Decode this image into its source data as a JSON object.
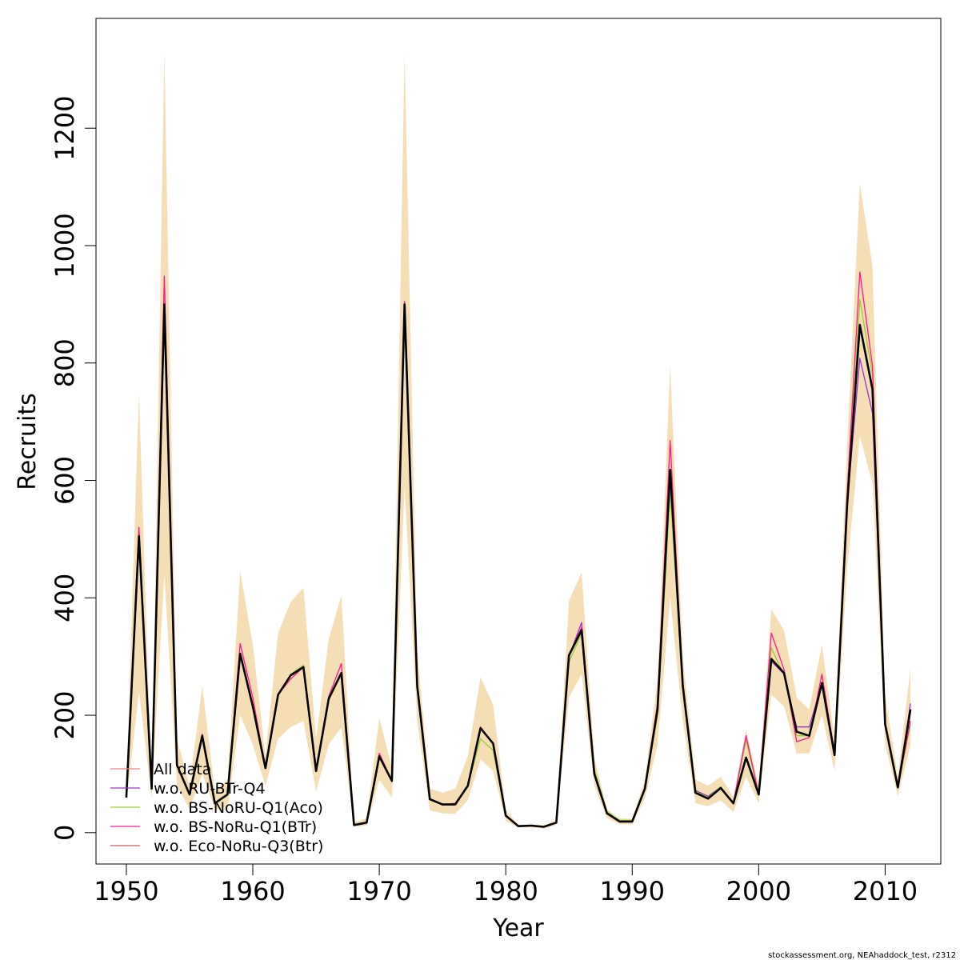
{
  "chart_data": {
    "type": "line",
    "xlabel": "Year",
    "ylabel": "Recruits",
    "xlim": [
      1947.6,
      2014.4
    ],
    "ylim": [
      -53.4,
      1387
    ],
    "xticks": [
      1950,
      1960,
      1970,
      1980,
      1990,
      2000,
      2010
    ],
    "yticks": [
      0,
      200,
      400,
      600,
      800,
      1000,
      1200
    ],
    "legend_position": "bottom-left",
    "band_color": "#F5DEB3",
    "x": [
      1950,
      1951,
      1952,
      1953,
      1954,
      1955,
      1956,
      1957,
      1958,
      1959,
      1960,
      1961,
      1962,
      1963,
      1964,
      1965,
      1966,
      1967,
      1968,
      1969,
      1970,
      1971,
      1972,
      1973,
      1974,
      1975,
      1976,
      1977,
      1978,
      1979,
      1980,
      1981,
      1982,
      1983,
      1984,
      1985,
      1986,
      1987,
      1988,
      1989,
      1990,
      1991,
      1992,
      1993,
      1994,
      1995,
      1996,
      1997,
      1998,
      1999,
      2000,
      2001,
      2002,
      2003,
      2004,
      2005,
      2006,
      2007,
      2008,
      2009,
      2010,
      2011,
      2012
    ],
    "band_upper": [
      80,
      750,
      70,
      1330,
      160,
      80,
      250,
      70,
      90,
      445,
      320,
      130,
      340,
      393,
      417,
      160,
      330,
      404,
      17,
      25,
      195,
      110,
      1330,
      310,
      75,
      68,
      75,
      130,
      265,
      218,
      38,
      13,
      14,
      12,
      22,
      395,
      443,
      127,
      40,
      24,
      24,
      90,
      260,
      795,
      300,
      90,
      80,
      95,
      60,
      175,
      80,
      380,
      345,
      230,
      210,
      320,
      160,
      660,
      1105,
      965,
      235,
      95,
      280
    ],
    "band_lower": [
      50,
      240,
      60,
      440,
      80,
      40,
      100,
      40,
      40,
      200,
      150,
      80,
      160,
      180,
      190,
      70,
      150,
      180,
      10,
      12,
      90,
      60,
      590,
      190,
      38,
      33,
      32,
      55,
      125,
      105,
      20,
      9,
      9,
      7,
      13,
      230,
      270,
      80,
      25,
      14,
      14,
      58,
      150,
      400,
      190,
      50,
      45,
      55,
      35,
      95,
      50,
      235,
      215,
      135,
      135,
      200,
      105,
      450,
      675,
      595,
      150,
      62,
      150
    ],
    "series": [
      {
        "name": "All data",
        "color": "#F08080",
        "width": 1.3,
        "values": [
          60,
          505,
          75,
          900,
          115,
          65,
          165,
          50,
          65,
          305,
          215,
          110,
          235,
          268,
          282,
          105,
          228,
          272,
          13,
          17,
          130,
          88,
          900,
          250,
          57,
          48,
          48,
          80,
          178,
          152,
          29,
          11,
          12,
          10,
          17,
          302,
          345,
          100,
          33,
          19,
          19,
          75,
          210,
          618,
          250,
          68,
          58,
          76,
          50,
          128,
          65,
          296,
          272,
          172,
          165,
          255,
          132,
          560,
          865,
          755,
          185,
          77,
          210
        ]
      },
      {
        "name": "w.o. RU-BTr-Q4",
        "color": "#9A32CD",
        "width": 1.3,
        "values": [
          60,
          500,
          75,
          880,
          115,
          65,
          165,
          50,
          65,
          300,
          215,
          110,
          235,
          268,
          282,
          105,
          228,
          270,
          13,
          17,
          130,
          88,
          885,
          248,
          57,
          48,
          48,
          80,
          178,
          152,
          29,
          11,
          12,
          10,
          17,
          300,
          358,
          100,
          33,
          19,
          19,
          75,
          210,
          610,
          250,
          72,
          62,
          78,
          50,
          128,
          65,
          292,
          270,
          180,
          180,
          255,
          140,
          560,
          808,
          715,
          185,
          77,
          220
        ]
      },
      {
        "name": "w.o. BS-NoRU-Q1(Aco)",
        "color": "#9ACD32",
        "width": 1.3,
        "values": [
          60,
          500,
          75,
          890,
          115,
          65,
          165,
          50,
          65,
          300,
          220,
          110,
          235,
          270,
          285,
          105,
          228,
          270,
          13,
          17,
          130,
          88,
          890,
          248,
          57,
          48,
          48,
          80,
          160,
          140,
          29,
          11,
          12,
          10,
          17,
          290,
          340,
          108,
          36,
          21,
          21,
          75,
          200,
          580,
          245,
          70,
          60,
          78,
          50,
          158,
          65,
          315,
          268,
          165,
          165,
          255,
          132,
          560,
          908,
          780,
          185,
          77,
          185
        ]
      },
      {
        "name": "w.o. BS-NoRu-Q1(BTr)",
        "color": "#FF1493",
        "width": 1.3,
        "values": [
          60,
          520,
          75,
          948,
          115,
          65,
          168,
          50,
          65,
          322,
          230,
          110,
          235,
          262,
          282,
          105,
          232,
          288,
          13,
          17,
          135,
          88,
          905,
          250,
          57,
          48,
          50,
          80,
          180,
          152,
          29,
          11,
          12,
          10,
          17,
          302,
          350,
          100,
          33,
          19,
          19,
          75,
          220,
          668,
          250,
          68,
          58,
          76,
          50,
          165,
          65,
          340,
          278,
          155,
          162,
          270,
          135,
          580,
          955,
          795,
          185,
          77,
          190
        ]
      },
      {
        "name": "w.o. Eco-NoRu-Q3(Btr)",
        "color": "#CD5C5C",
        "width": 1.3,
        "values": [
          60,
          505,
          75,
          900,
          115,
          65,
          165,
          50,
          65,
          305,
          215,
          110,
          235,
          268,
          282,
          105,
          228,
          272,
          13,
          17,
          130,
          88,
          900,
          250,
          57,
          48,
          48,
          80,
          178,
          152,
          29,
          11,
          12,
          10,
          17,
          302,
          345,
          100,
          33,
          19,
          19,
          75,
          210,
          618,
          250,
          68,
          58,
          76,
          50,
          128,
          65,
          296,
          272,
          172,
          165,
          255,
          132,
          560,
          865,
          755,
          185,
          77,
          210
        ]
      },
      {
        "name": "",
        "color": "#000000",
        "width": 2.6,
        "values": [
          60,
          505,
          75,
          900,
          115,
          65,
          165,
          50,
          65,
          305,
          215,
          110,
          235,
          268,
          282,
          105,
          228,
          272,
          13,
          17,
          130,
          88,
          900,
          250,
          57,
          48,
          48,
          80,
          178,
          152,
          29,
          11,
          12,
          10,
          17,
          302,
          345,
          100,
          33,
          19,
          19,
          75,
          210,
          618,
          250,
          68,
          58,
          76,
          50,
          128,
          65,
          296,
          272,
          172,
          165,
          255,
          132,
          560,
          865,
          755,
          185,
          77,
          210
        ]
      }
    ]
  },
  "footer": {
    "note": "stockassessment.org, NEAhaddock_test, r2312"
  }
}
